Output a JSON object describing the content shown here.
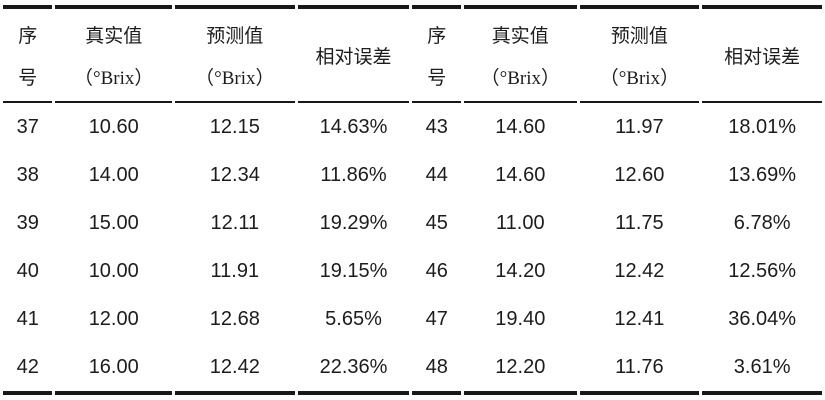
{
  "table": {
    "title_semantic": "真实值与预测值相对误差表",
    "unit": "°Brix",
    "columns": [
      {
        "line1": "序",
        "line2": "号"
      },
      {
        "line1": "真实值",
        "line2": "（°Brix）"
      },
      {
        "line1": "预测值",
        "line2": "（°Brix）"
      },
      {
        "line1": "相对误差",
        "line2": ""
      },
      {
        "line1": "序",
        "line2": "号"
      },
      {
        "line1": "真实值",
        "line2": "（°Brix）"
      },
      {
        "line1": "预测值",
        "line2": "（°Brix）"
      },
      {
        "line1": "相对误差",
        "line2": ""
      }
    ],
    "rows": [
      [
        "37",
        "10.60",
        "12.15",
        "14.63%",
        "43",
        "14.60",
        "11.97",
        "18.01%"
      ],
      [
        "38",
        "14.00",
        "12.34",
        "11.86%",
        "44",
        "14.60",
        "12.60",
        "13.69%"
      ],
      [
        "39",
        "15.00",
        "12.11",
        "19.29%",
        "45",
        "11.00",
        "11.75",
        "6.78%"
      ],
      [
        "40",
        "10.00",
        "11.91",
        "19.15%",
        "46",
        "14.20",
        "12.42",
        "12.56%"
      ],
      [
        "41",
        "12.00",
        "12.68",
        "5.65%",
        "47",
        "19.40",
        "12.41",
        "36.04%"
      ],
      [
        "42",
        "16.00",
        "12.42",
        "22.36%",
        "48",
        "12.20",
        "11.76",
        "3.61%"
      ]
    ],
    "colors": {
      "rule": "#181818",
      "text": "#1c1c1c",
      "background": "#ffffff"
    }
  }
}
